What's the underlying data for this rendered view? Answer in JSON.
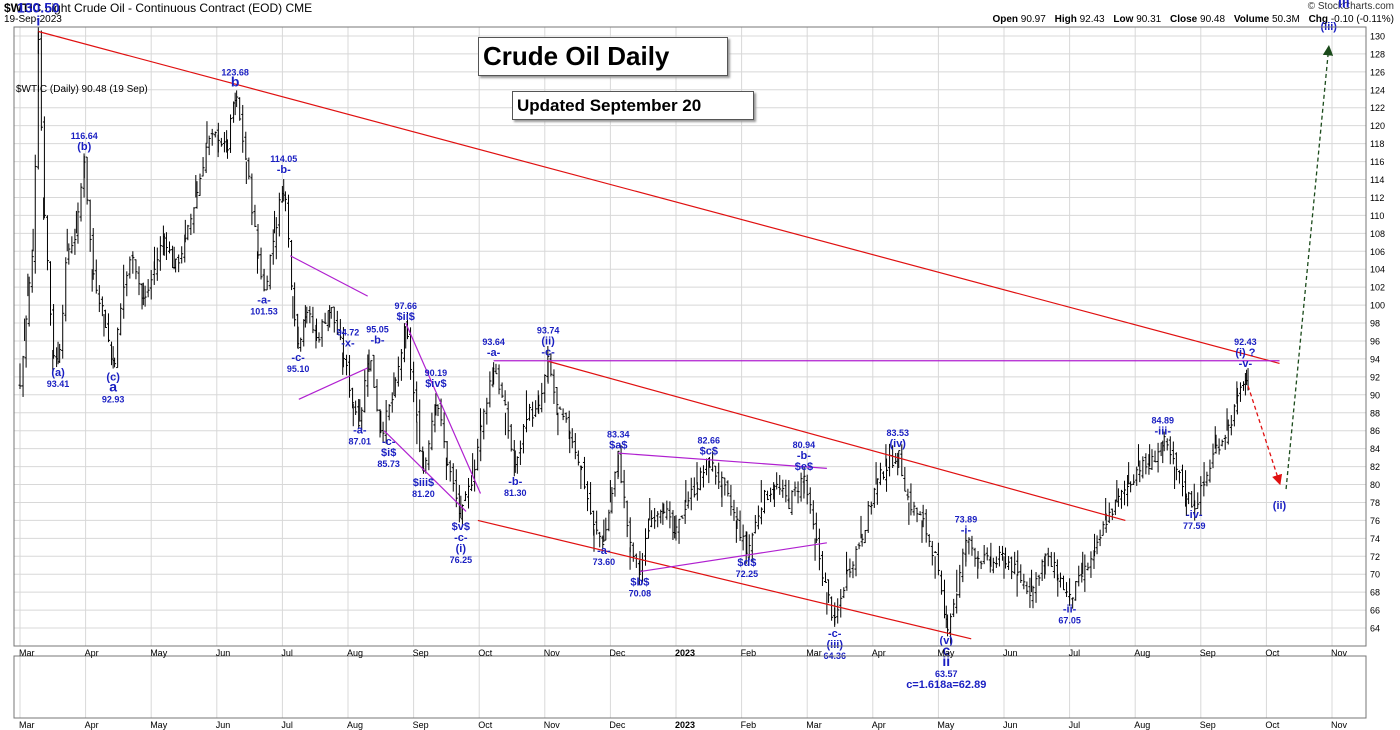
{
  "header": {
    "symbol": "$WTIC",
    "description": "Light Crude Oil - Continuous Contract (EOD)",
    "exchange": "CME",
    "date": "19-Sep-2023",
    "source": "© StockCharts.com",
    "open_label": "Open",
    "open": "90.97",
    "high_label": "High",
    "high": "92.43",
    "low_label": "Low",
    "low": "90.31",
    "close_label": "Close",
    "close": "90.48",
    "volume_label": "Volume",
    "volume": "50.3M",
    "chg_label": "Chg",
    "chg": "-0.10 (-0.11%)"
  },
  "legend_text": "$WTIC (Daily) 90.48 (19 Sep)",
  "title": "Crude Oil Daily",
  "updated": "Updated September 20",
  "chart_data": {
    "type": "ohlc",
    "x_axis": {
      "tick_labels": [
        "Mar",
        "Apr",
        "May",
        "Jun",
        "Jul",
        "Aug",
        "Sep",
        "Oct",
        "Nov",
        "Dec",
        "2023",
        "Feb",
        "Mar",
        "Apr",
        "May",
        "Jun",
        "Jul",
        "Aug",
        "Sep",
        "Oct",
        "Nov"
      ],
      "tick_index": [
        0,
        1,
        2,
        3,
        4,
        5,
        6,
        7,
        8,
        9,
        10,
        11,
        12,
        13,
        14,
        15,
        16,
        17,
        18,
        19,
        20
      ]
    },
    "y_axis": {
      "range": [
        62,
        131
      ],
      "ticks": [
        64,
        66,
        68,
        70,
        72,
        74,
        76,
        78,
        80,
        82,
        84,
        86,
        88,
        90,
        92,
        94,
        96,
        98,
        100,
        102,
        104,
        106,
        108,
        110,
        112,
        114,
        116,
        118,
        120,
        122,
        124,
        126,
        128,
        130
      ],
      "side": "right"
    },
    "grid": true,
    "price_path": [
      [
        0,
        91
      ],
      [
        0.07,
        96
      ],
      [
        0.12,
        101
      ],
      [
        0.2,
        106
      ],
      [
        0.28,
        130.5
      ],
      [
        0.36,
        112
      ],
      [
        0.5,
        95
      ],
      [
        0.58,
        93.41
      ],
      [
        0.72,
        106
      ],
      [
        0.86,
        108
      ],
      [
        0.98,
        116.64
      ],
      [
        1.1,
        104
      ],
      [
        1.28,
        99
      ],
      [
        1.42,
        92.93
      ],
      [
        1.58,
        102
      ],
      [
        1.72,
        106
      ],
      [
        1.88,
        100
      ],
      [
        2.05,
        104
      ],
      [
        2.2,
        108
      ],
      [
        2.35,
        104
      ],
      [
        2.52,
        107
      ],
      [
        2.68,
        112
      ],
      [
        2.85,
        118
      ],
      [
        3.02,
        119
      ],
      [
        3.15,
        117
      ],
      [
        3.28,
        123.68
      ],
      [
        3.45,
        116
      ],
      [
        3.62,
        106
      ],
      [
        3.72,
        101.53
      ],
      [
        3.88,
        108
      ],
      [
        4.02,
        114.05
      ],
      [
        4.16,
        101
      ],
      [
        4.24,
        95.1
      ],
      [
        4.35,
        100
      ],
      [
        4.52,
        96
      ],
      [
        4.72,
        100
      ],
      [
        4.92,
        94.72
      ],
      [
        5.08,
        89
      ],
      [
        5.18,
        87.01
      ],
      [
        5.32,
        95.05
      ],
      [
        5.5,
        85.73
      ],
      [
        5.7,
        90
      ],
      [
        5.88,
        97.66
      ],
      [
        6.05,
        87
      ],
      [
        6.15,
        81.2
      ],
      [
        6.34,
        90.19
      ],
      [
        6.5,
        83
      ],
      [
        6.72,
        76.25
      ],
      [
        6.9,
        81
      ],
      [
        7.02,
        86
      ],
      [
        7.22,
        93.64
      ],
      [
        7.4,
        88
      ],
      [
        7.55,
        81.3
      ],
      [
        7.72,
        88
      ],
      [
        7.9,
        88
      ],
      [
        8.05,
        93.74
      ],
      [
        8.2,
        88
      ],
      [
        8.38,
        86
      ],
      [
        8.55,
        82
      ],
      [
        8.75,
        75
      ],
      [
        8.9,
        73.6
      ],
      [
        9.0,
        78
      ],
      [
        9.12,
        83.34
      ],
      [
        9.3,
        73
      ],
      [
        9.45,
        70.08
      ],
      [
        9.6,
        76
      ],
      [
        9.8,
        78
      ],
      [
        9.98,
        74
      ],
      [
        10.15,
        78
      ],
      [
        10.32,
        80
      ],
      [
        10.5,
        82.66
      ],
      [
        10.7,
        80
      ],
      [
        10.92,
        76
      ],
      [
        11.08,
        72.25
      ],
      [
        11.3,
        78
      ],
      [
        11.5,
        80
      ],
      [
        11.72,
        78
      ],
      [
        11.95,
        80.94
      ],
      [
        12.12,
        74
      ],
      [
        12.3,
        68
      ],
      [
        12.42,
        64.36
      ],
      [
        12.6,
        70
      ],
      [
        12.82,
        74
      ],
      [
        13.05,
        80
      ],
      [
        13.2,
        82
      ],
      [
        13.38,
        83.53
      ],
      [
        13.55,
        78
      ],
      [
        13.75,
        76
      ],
      [
        13.95,
        72
      ],
      [
        14.12,
        64
      ],
      [
        14.28,
        68
      ],
      [
        14.42,
        73.89
      ],
      [
        14.6,
        72
      ],
      [
        14.8,
        71
      ],
      [
        15.0,
        72
      ],
      [
        15.2,
        70
      ],
      [
        15.42,
        68
      ],
      [
        15.62,
        72
      ],
      [
        15.82,
        70
      ],
      [
        16.0,
        67.05
      ],
      [
        16.2,
        70
      ],
      [
        16.38,
        72
      ],
      [
        16.55,
        76
      ],
      [
        16.72,
        78
      ],
      [
        16.9,
        80
      ],
      [
        17.05,
        82
      ],
      [
        17.22,
        82
      ],
      [
        17.42,
        84.89
      ],
      [
        17.6,
        82
      ],
      [
        17.78,
        79
      ],
      [
        17.9,
        77.59
      ],
      [
        18.05,
        80
      ],
      [
        18.22,
        84
      ],
      [
        18.4,
        86
      ],
      [
        18.55,
        89
      ],
      [
        18.68,
        92.43
      ],
      [
        18.72,
        90.48
      ]
    ],
    "trendlines": [
      {
        "color": "#e01010",
        "points": [
          [
            0.28,
            130.5
          ],
          [
            19.2,
            93.5
          ]
        ]
      },
      {
        "color": "#e01010",
        "points": [
          [
            8.05,
            93.74
          ],
          [
            16.85,
            76
          ]
        ]
      },
      {
        "color": "#e01010",
        "points": [
          [
            6.98,
            76
          ],
          [
            14.5,
            62.8
          ]
        ]
      },
      {
        "color": "#b020d0",
        "points": [
          [
            7.22,
            93.8
          ],
          [
            19.2,
            93.8
          ]
        ]
      },
      {
        "color": "#b020d0",
        "points": [
          [
            4.12,
            105.5
          ],
          [
            5.3,
            101
          ]
        ]
      },
      {
        "color": "#b020d0",
        "points": [
          [
            4.25,
            89.5
          ],
          [
            5.3,
            93
          ]
        ]
      },
      {
        "color": "#b020d0",
        "points": [
          [
            5.88,
            98
          ],
          [
            7.02,
            79
          ]
        ]
      },
      {
        "color": "#b020d0",
        "points": [
          [
            5.55,
            86
          ],
          [
            6.8,
            77
          ]
        ]
      },
      {
        "color": "#b020d0",
        "points": [
          [
            9.12,
            83.5
          ],
          [
            12.3,
            81.8
          ]
        ]
      },
      {
        "color": "#b020d0",
        "points": [
          [
            9.45,
            70.3
          ],
          [
            12.3,
            73.5
          ]
        ]
      }
    ],
    "projections": [
      {
        "color": "#e01010",
        "dash": true,
        "points": [
          [
            18.72,
            91
          ],
          [
            19.2,
            80.2
          ]
        ]
      },
      {
        "color": "#1a4a1a",
        "dash": true,
        "points": [
          [
            19.3,
            79.5
          ],
          [
            19.95,
            128.7
          ]
        ]
      }
    ],
    "annotations": [
      {
        "lines": [
          "130.50",
          "i"
        ],
        "at": [
          0.28,
          130.5
        ],
        "pos": "above",
        "big": true
      },
      {
        "lines": [
          "116.64",
          "(b)"
        ],
        "at": [
          0.98,
          116.64
        ],
        "pos": "above"
      },
      {
        "lines": [
          "(a)",
          "93.41"
        ],
        "at": [
          0.58,
          93.41
        ],
        "pos": "below"
      },
      {
        "lines": [
          "(c)",
          "a",
          "92.93"
        ],
        "at": [
          1.42,
          92.93
        ],
        "pos": "below"
      },
      {
        "lines": [
          "123.68",
          "b"
        ],
        "at": [
          3.28,
          123.68
        ],
        "pos": "above"
      },
      {
        "lines": [
          "114.05",
          "-b-"
        ],
        "at": [
          4.02,
          114.05
        ],
        "pos": "above"
      },
      {
        "lines": [
          "-a-",
          "101.53"
        ],
        "at": [
          3.72,
          101.53
        ],
        "pos": "below"
      },
      {
        "lines": [
          "-c-",
          "95.10"
        ],
        "at": [
          4.24,
          95.1
        ],
        "pos": "below"
      },
      {
        "lines": [
          "94.72",
          "-x-"
        ],
        "at": [
          5.0,
          94.72
        ],
        "pos": "above"
      },
      {
        "lines": [
          "95.05",
          "-b-"
        ],
        "at": [
          5.45,
          95.05
        ],
        "pos": "above"
      },
      {
        "lines": [
          "-a-",
          "87.01"
        ],
        "at": [
          5.18,
          87.01
        ],
        "pos": "below"
      },
      {
        "lines": [
          "-c-",
          "$i$",
          "85.73"
        ],
        "at": [
          5.62,
          85.73
        ],
        "pos": "below"
      },
      {
        "lines": [
          "97.66",
          "$ii$"
        ],
        "at": [
          5.88,
          97.66
        ],
        "pos": "above"
      },
      {
        "lines": [
          "90.19",
          "$iv$"
        ],
        "at": [
          6.34,
          90.19
        ],
        "pos": "above"
      },
      {
        "lines": [
          "$iii$",
          "81.20"
        ],
        "at": [
          6.15,
          81.2
        ],
        "pos": "below"
      },
      {
        "lines": [
          "$v$",
          "-c-",
          "(i)",
          "76.25"
        ],
        "at": [
          6.72,
          76.25
        ],
        "pos": "below"
      },
      {
        "lines": [
          "93.64",
          "-a-"
        ],
        "at": [
          7.22,
          93.64
        ],
        "pos": "above"
      },
      {
        "lines": [
          "-b-",
          "81.30"
        ],
        "at": [
          7.55,
          81.3
        ],
        "pos": "below"
      },
      {
        "lines": [
          "93.74",
          "(ii)",
          "-c-"
        ],
        "at": [
          8.05,
          93.74
        ],
        "pos": "above"
      },
      {
        "lines": [
          "83.34",
          "$a$"
        ],
        "at": [
          9.12,
          83.34
        ],
        "pos": "above"
      },
      {
        "lines": [
          "-a-",
          "73.60"
        ],
        "at": [
          8.9,
          73.6
        ],
        "pos": "below"
      },
      {
        "lines": [
          "$b$",
          "70.08"
        ],
        "at": [
          9.45,
          70.08
        ],
        "pos": "below"
      },
      {
        "lines": [
          "82.66",
          "$c$"
        ],
        "at": [
          10.5,
          82.66
        ],
        "pos": "above"
      },
      {
        "lines": [
          "$d$",
          "72.25"
        ],
        "at": [
          11.08,
          72.25
        ],
        "pos": "below"
      },
      {
        "lines": [
          "80.94",
          "-b-",
          "$e$"
        ],
        "at": [
          11.95,
          80.94
        ],
        "pos": "above"
      },
      {
        "lines": [
          "-c-",
          "(iii)",
          "64.36"
        ],
        "at": [
          12.42,
          64.36
        ],
        "pos": "below"
      },
      {
        "lines": [
          "83.53",
          "(iv)"
        ],
        "at": [
          13.38,
          83.53
        ],
        "pos": "above"
      },
      {
        "lines": [
          "(v)",
          "c",
          "ii",
          "63.57",
          "c=1.618a=62.89"
        ],
        "at": [
          14.12,
          63.57
        ],
        "pos": "below"
      },
      {
        "lines": [
          "73.89",
          "-i-"
        ],
        "at": [
          14.42,
          73.89
        ],
        "pos": "above"
      },
      {
        "lines": [
          "-ii-",
          "67.05"
        ],
        "at": [
          16.0,
          67.05
        ],
        "pos": "below"
      },
      {
        "lines": [
          "84.89",
          "-iii-"
        ],
        "at": [
          17.42,
          84.89
        ],
        "pos": "above"
      },
      {
        "lines": [
          "-iv-",
          "77.59"
        ],
        "at": [
          17.9,
          77.59
        ],
        "pos": "below"
      },
      {
        "lines": [
          "92.43",
          "(i) ?",
          "-v-"
        ],
        "at": [
          18.68,
          92.43
        ],
        "pos": "above"
      },
      {
        "lines": [
          "(ii)"
        ],
        "at": [
          19.2,
          78.6
        ],
        "pos": "below"
      },
      {
        "lines": [
          "(iii)"
        ],
        "at": [
          19.95,
          130
        ],
        "pos": "above"
      },
      {
        "lines": [
          "iii"
        ],
        "at": [
          20.18,
          132.5
        ],
        "pos": "above",
        "big": true
      }
    ]
  }
}
